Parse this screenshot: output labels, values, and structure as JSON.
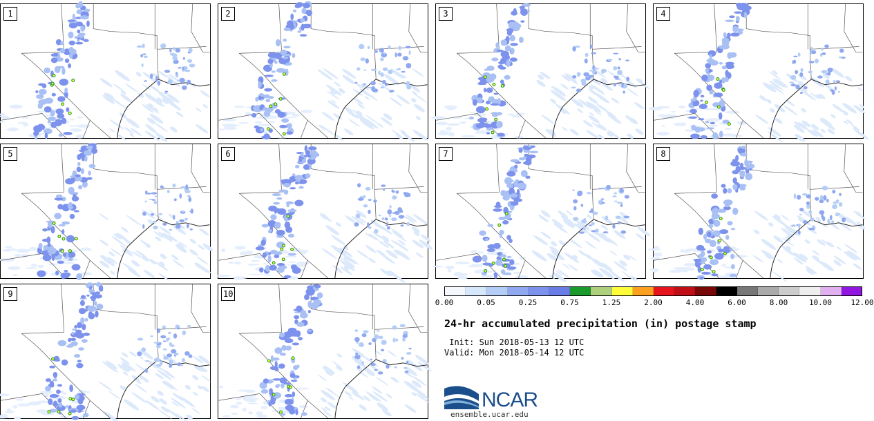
{
  "panels": [
    {
      "label": "1"
    },
    {
      "label": "2"
    },
    {
      "label": "3"
    },
    {
      "label": "4"
    },
    {
      "label": "5"
    },
    {
      "label": "6"
    },
    {
      "label": "7"
    },
    {
      "label": "8"
    },
    {
      "label": "9"
    },
    {
      "label": "10"
    }
  ],
  "colorbar": {
    "colors": [
      "#f4f8fd",
      "#d6e6fb",
      "#b4cdf6",
      "#8fa8f0",
      "#7c92ec",
      "#6a7ce6",
      "#1b9a2c",
      "#aed07c",
      "#fffc3a",
      "#fca020",
      "#e6141c",
      "#c00e16",
      "#780808",
      "#000000",
      "#777777",
      "#aaaaaa",
      "#cccccc",
      "#eeeeee",
      "#e0b0f0",
      "#9016e0"
    ],
    "tick_labels": [
      "0.00",
      "0.05",
      "0.25",
      "0.75",
      "1.25",
      "2.00",
      "4.00",
      "6.00",
      "8.00",
      "10.00",
      "12.00"
    ]
  },
  "title": "24-hr accumulated precipitation (in) postage stamp",
  "init_line": " Init: Sun 2018-05-13 12 UTC",
  "valid_line": "Valid: Mon 2018-05-14 12 UTC",
  "logo_text": "NCAR",
  "website": "ensemble.ucar.edu"
}
